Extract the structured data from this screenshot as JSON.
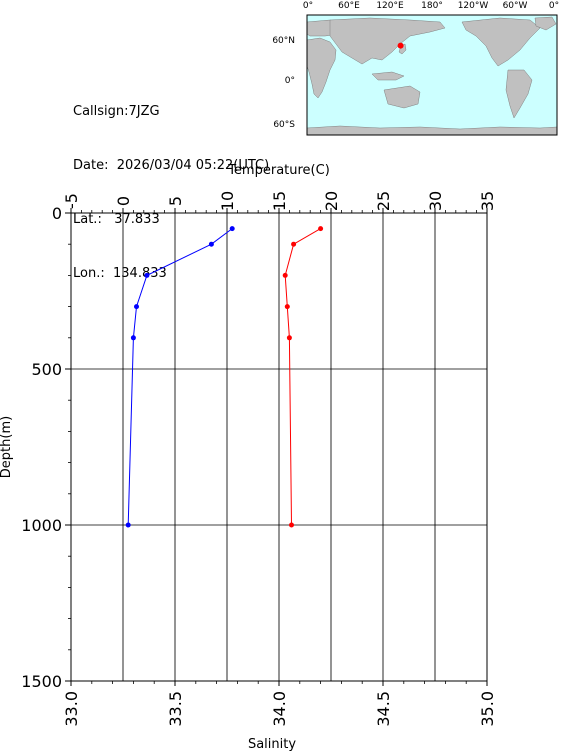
{
  "station": {
    "callsign_label": "Callsign:",
    "callsign": "7JZG",
    "date_label": "Date:",
    "date": "2026/03/04 05:22(UTC)",
    "lat_label": "Lat.:",
    "lat": "37.833",
    "lon_label": "Lon.:",
    "lon": "134.833"
  },
  "map": {
    "top_labels": [
      "0°",
      "60°E",
      "120°E",
      "180°",
      "120°W",
      "60°W",
      "0°"
    ],
    "left_labels": [
      "60°N",
      "0°",
      "60°S"
    ],
    "ocean_color": "#ccffff",
    "land_color": "#c0c0c0",
    "marker_color": "#ff0000",
    "marker_lat": 37.833,
    "marker_lon": 134.833
  },
  "chart_data": {
    "type": "line",
    "title": "",
    "top_axis": {
      "label": "Temperature(C)",
      "range": [
        -5,
        35
      ],
      "ticks": [
        "-5",
        "0",
        "5",
        "10",
        "15",
        "20",
        "25",
        "30",
        "35"
      ]
    },
    "bottom_axis": {
      "label": "Salinity",
      "range": [
        33.0,
        35.0
      ],
      "ticks": [
        "33.0",
        "33.5",
        "34.0",
        "34.5",
        "35.0"
      ]
    },
    "y_axis": {
      "label": "Depth(m)",
      "range": [
        0,
        1500
      ],
      "inverted": true,
      "ticks": [
        "0",
        "500",
        "1000",
        "1500"
      ]
    },
    "grid": true,
    "series": [
      {
        "variable": "temperature",
        "color": "#0000ff",
        "depth": [
          50,
          100,
          200,
          300,
          400,
          1000
        ],
        "values": [
          10.5,
          8.5,
          2.3,
          1.3,
          1.0,
          0.5
        ]
      },
      {
        "variable": "salinity",
        "color": "#ff0000",
        "depth": [
          50,
          100,
          200,
          300,
          400,
          1000
        ],
        "values": [
          34.2,
          34.07,
          34.03,
          34.04,
          34.05,
          34.06
        ]
      }
    ]
  }
}
